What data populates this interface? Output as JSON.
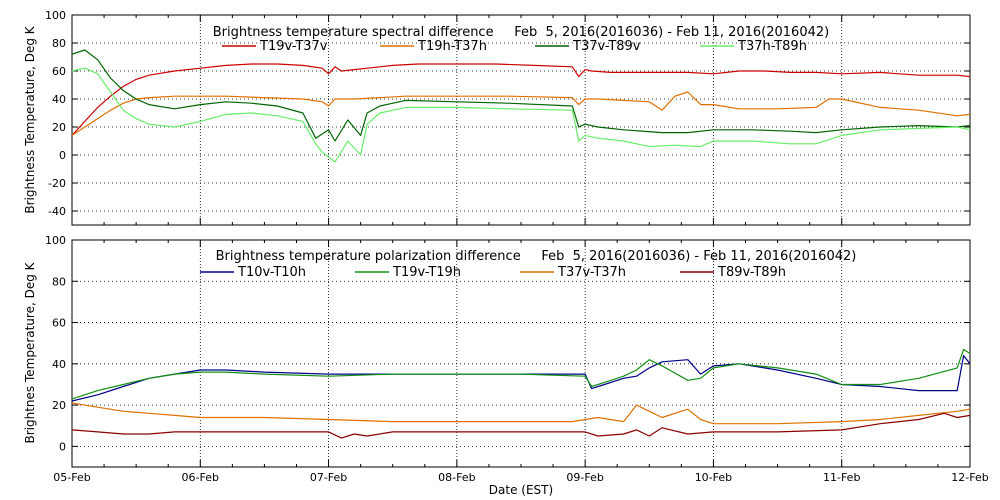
{
  "chart_data": [
    {
      "type": "line",
      "title": "Brightness temperature spectral difference     Feb  5, 2016(2016036) - Feb 11, 2016(2016042)",
      "xlabel": "",
      "ylabel": "Brightness Temperature, Deg K",
      "ylim": [
        -50,
        100
      ],
      "yticks": [
        -40,
        -20,
        0,
        20,
        40,
        60,
        80,
        100
      ],
      "xlim": [
        0,
        7
      ],
      "legend_position": "top",
      "grid": true,
      "series": [
        {
          "name": "T19v-T37v",
          "color": "#cc0000",
          "x": [
            0,
            0.1,
            0.2,
            0.3,
            0.4,
            0.5,
            0.6,
            0.8,
            1.0,
            1.2,
            1.4,
            1.6,
            1.8,
            1.95,
            2.0,
            2.05,
            2.1,
            2.2,
            2.3,
            2.4,
            2.5,
            2.7,
            3.0,
            3.3,
            3.6,
            3.9,
            3.95,
            4.0,
            4.05,
            4.2,
            4.5,
            4.8,
            5.0,
            5.2,
            5.4,
            5.6,
            5.8,
            6.0,
            6.3,
            6.6,
            6.9,
            7.0
          ],
          "y": [
            14,
            24,
            34,
            42,
            49,
            54,
            57,
            60,
            62,
            64,
            65,
            65,
            64,
            62,
            58,
            63,
            60,
            61,
            62,
            63,
            64,
            65,
            65,
            65,
            64,
            63,
            56,
            61,
            60,
            59,
            59,
            59,
            58,
            60,
            60,
            59,
            59,
            58,
            59,
            57,
            57,
            56
          ]
        },
        {
          "name": "T19h-T37h",
          "color": "#e07000",
          "x": [
            0,
            0.1,
            0.2,
            0.3,
            0.4,
            0.5,
            0.6,
            0.8,
            1.0,
            1.2,
            1.5,
            1.8,
            1.95,
            2.0,
            2.05,
            2.2,
            2.4,
            2.6,
            3.0,
            3.4,
            3.9,
            3.95,
            4.0,
            4.1,
            4.3,
            4.5,
            4.6,
            4.7,
            4.8,
            4.9,
            5.0,
            5.2,
            5.5,
            5.8,
            5.9,
            6.0,
            6.3,
            6.6,
            6.9,
            7.0
          ],
          "y": [
            14,
            20,
            26,
            32,
            37,
            40,
            41,
            42,
            42,
            42,
            41,
            40,
            38,
            35,
            40,
            40,
            41,
            42,
            42,
            42,
            41,
            36,
            40,
            40,
            39,
            38,
            32,
            42,
            45,
            36,
            36,
            33,
            33,
            34,
            40,
            40,
            34,
            32,
            28,
            29
          ]
        },
        {
          "name": "T37v-T89v",
          "color": "#006400",
          "x": [
            0,
            0.1,
            0.2,
            0.3,
            0.4,
            0.5,
            0.6,
            0.8,
            1.0,
            1.2,
            1.4,
            1.6,
            1.8,
            1.9,
            2.0,
            2.05,
            2.15,
            2.25,
            2.3,
            2.4,
            2.6,
            3.0,
            3.4,
            3.9,
            3.95,
            4.0,
            4.1,
            4.3,
            4.6,
            4.8,
            5.0,
            5.3,
            5.6,
            5.8,
            6.0,
            6.3,
            6.6,
            6.9,
            7.0
          ],
          "y": [
            72,
            75,
            68,
            55,
            46,
            40,
            36,
            33,
            36,
            38,
            37,
            35,
            30,
            12,
            18,
            10,
            25,
            14,
            30,
            35,
            39,
            38,
            37,
            35,
            20,
            22,
            20,
            18,
            16,
            16,
            18,
            18,
            17,
            16,
            18,
            20,
            21,
            20,
            21
          ]
        },
        {
          "name": "T37h-T89h",
          "color": "#66ee66",
          "x": [
            0,
            0.1,
            0.2,
            0.3,
            0.4,
            0.5,
            0.6,
            0.8,
            1.0,
            1.2,
            1.4,
            1.6,
            1.8,
            1.9,
            1.95,
            2.05,
            2.15,
            2.25,
            2.3,
            2.4,
            2.6,
            3.0,
            3.4,
            3.9,
            3.95,
            4.0,
            4.1,
            4.3,
            4.5,
            4.7,
            4.9,
            5.0,
            5.3,
            5.6,
            5.8,
            6.0,
            6.3,
            6.6,
            6.9,
            7.0
          ],
          "y": [
            60,
            62,
            58,
            45,
            32,
            26,
            22,
            20,
            24,
            29,
            30,
            28,
            24,
            8,
            2,
            -5,
            10,
            0,
            22,
            30,
            34,
            34,
            33,
            32,
            10,
            14,
            12,
            10,
            6,
            7,
            6,
            10,
            10,
            8,
            8,
            14,
            18,
            19,
            20,
            18
          ]
        }
      ]
    },
    {
      "type": "line",
      "title": "Brightness temperature polarization difference     Feb  5, 2016(2016036) - Feb 11, 2016(2016042)",
      "xlabel": "Date (EST)",
      "ylabel": "Brightnes Temperature, Deg K",
      "ylim": [
        -10,
        100
      ],
      "yticks": [
        0,
        20,
        40,
        60,
        80,
        100
      ],
      "xlim": [
        0,
        7
      ],
      "xtick_labels": [
        "05-Feb",
        "06-Feb",
        "07-Feb",
        "08-Feb",
        "09-Feb",
        "10-Feb",
        "11-Feb",
        "12-Feb"
      ],
      "legend_position": "top",
      "grid": true,
      "series": [
        {
          "name": "T10v-T10h",
          "color": "#00008b",
          "x": [
            0,
            0.2,
            0.4,
            0.6,
            0.8,
            1.0,
            1.2,
            1.5,
            2.0,
            2.5,
            3.0,
            3.5,
            4.0,
            4.05,
            4.15,
            4.3,
            4.4,
            4.5,
            4.6,
            4.8,
            4.9,
            5.0,
            5.2,
            5.5,
            5.8,
            6.0,
            6.3,
            6.6,
            6.9,
            6.95,
            7.0
          ],
          "y": [
            22,
            25,
            29,
            33,
            35,
            37,
            37,
            36,
            35,
            35,
            35,
            35,
            35,
            28,
            30,
            33,
            34,
            38,
            41,
            42,
            35,
            39,
            40,
            37,
            33,
            30,
            29,
            27,
            27,
            44,
            40
          ]
        },
        {
          "name": "T19v-T19h",
          "color": "#109010",
          "x": [
            0,
            0.2,
            0.4,
            0.6,
            0.8,
            1.0,
            1.2,
            1.5,
            2.0,
            2.5,
            3.0,
            3.5,
            4.0,
            4.05,
            4.15,
            4.3,
            4.4,
            4.5,
            4.6,
            4.8,
            4.9,
            5.0,
            5.2,
            5.5,
            5.8,
            6.0,
            6.3,
            6.6,
            6.9,
            6.95,
            7.0
          ],
          "y": [
            23,
            27,
            30,
            33,
            35,
            36,
            36,
            35,
            34,
            35,
            35,
            35,
            34,
            29,
            31,
            34,
            37,
            42,
            39,
            32,
            33,
            38,
            40,
            38,
            35,
            30,
            30,
            33,
            38,
            47,
            45
          ]
        },
        {
          "name": "T37v-T37h",
          "color": "#e07000",
          "x": [
            0,
            0.2,
            0.4,
            0.6,
            0.8,
            1.0,
            1.5,
            2.0,
            2.5,
            3.0,
            3.5,
            3.9,
            4.0,
            4.1,
            4.3,
            4.4,
            4.5,
            4.6,
            4.8,
            4.9,
            5.0,
            5.5,
            6.0,
            6.3,
            6.6,
            6.9,
            7.0
          ],
          "y": [
            21,
            19,
            17,
            16,
            15,
            14,
            14,
            13,
            12,
            12,
            12,
            12,
            13,
            14,
            12,
            20,
            17,
            14,
            18,
            13,
            11,
            11,
            12,
            13,
            15,
            17,
            18
          ]
        },
        {
          "name": "T89v-T89h",
          "color": "#8b0000",
          "x": [
            0,
            0.2,
            0.4,
            0.6,
            0.8,
            1.0,
            1.5,
            2.0,
            2.1,
            2.2,
            2.3,
            2.5,
            3.0,
            3.5,
            4.0,
            4.1,
            4.3,
            4.4,
            4.5,
            4.6,
            4.8,
            5.0,
            5.5,
            6.0,
            6.3,
            6.6,
            6.8,
            6.9,
            7.0
          ],
          "y": [
            8,
            7,
            6,
            6,
            7,
            7,
            7,
            7,
            4,
            6,
            5,
            7,
            7,
            7,
            7,
            5,
            6,
            8,
            5,
            9,
            6,
            7,
            7,
            8,
            11,
            13,
            16,
            14,
            15
          ]
        }
      ]
    }
  ]
}
